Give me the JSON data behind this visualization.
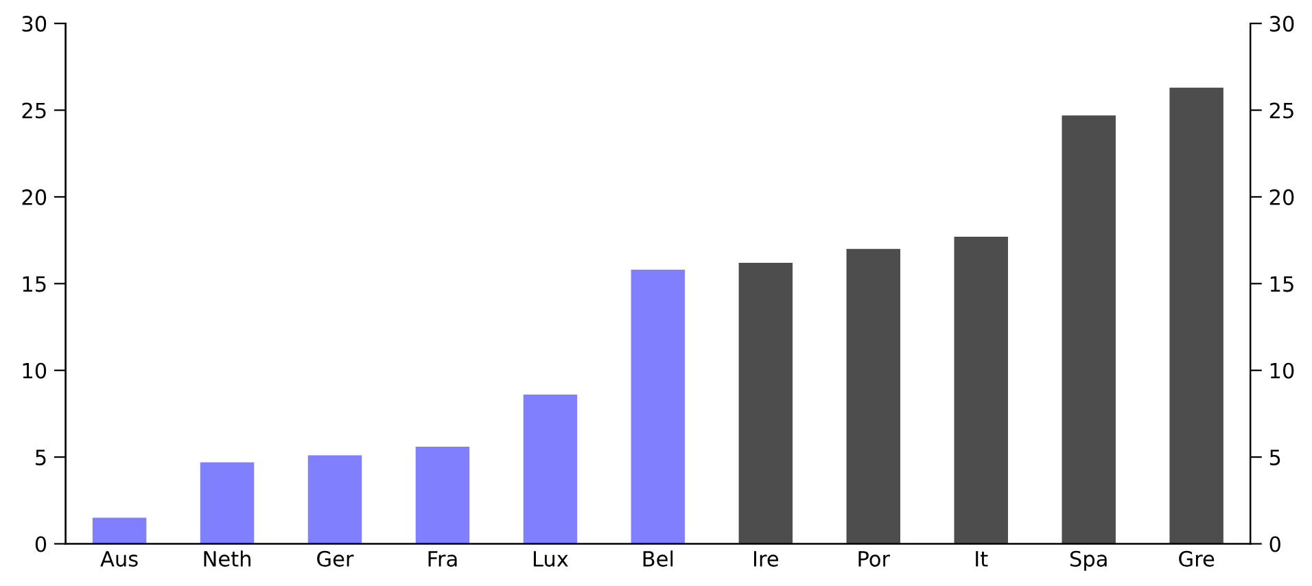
{
  "chart_data": {
    "type": "bar",
    "categories": [
      "Aus",
      "Neth",
      "Ger",
      "Fra",
      "Lux",
      "Bel",
      "Ire",
      "Por",
      "It",
      "Spa",
      "Gre"
    ],
    "values": [
      1.5,
      4.7,
      5.1,
      5.6,
      8.6,
      15.8,
      16.2,
      17.0,
      17.7,
      24.7,
      26.3
    ],
    "colors": [
      "#8080ff",
      "#8080ff",
      "#8080ff",
      "#8080ff",
      "#8080ff",
      "#8080ff",
      "#4d4d4d",
      "#4d4d4d",
      "#4d4d4d",
      "#4d4d4d",
      "#4d4d4d"
    ],
    "ylim": [
      0,
      30
    ],
    "yticks": [
      0,
      5,
      10,
      15,
      20,
      25,
      30
    ],
    "y2lim": [
      0,
      30
    ],
    "y2ticks": [
      0,
      5,
      10,
      15,
      20,
      25,
      30
    ],
    "grid": false,
    "legend": false
  }
}
